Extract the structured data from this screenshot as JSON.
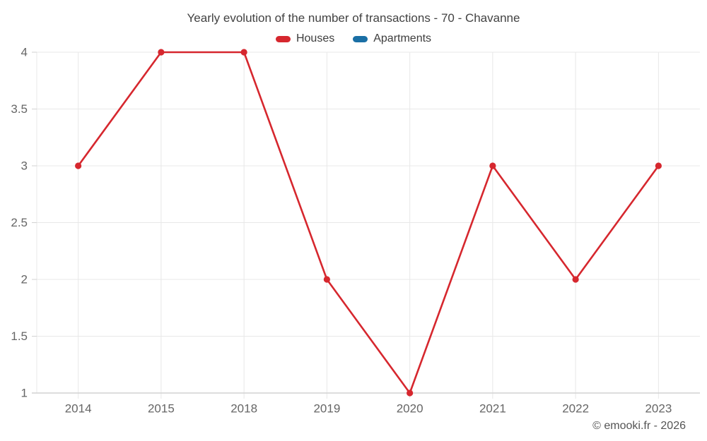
{
  "title": "Yearly evolution of the number of transactions - 70 - Chavanne",
  "legend": [
    {
      "label": "Houses",
      "color": "#d6272e"
    },
    {
      "label": "Apartments",
      "color": "#1a6fa5"
    }
  ],
  "copyright": "© emooki.fr - 2026",
  "chart_data": {
    "type": "line",
    "categories": [
      "2014",
      "2015",
      "2018",
      "2019",
      "2020",
      "2021",
      "2022",
      "2023"
    ],
    "series": [
      {
        "name": "Houses",
        "color": "#d6272e",
        "values": [
          3,
          4,
          4,
          2,
          1,
          3,
          2,
          3
        ]
      },
      {
        "name": "Apartments",
        "color": "#1a6fa5",
        "values": []
      }
    ],
    "title": "Yearly evolution of the number of transactions - 70 - Chavanne",
    "xlabel": "",
    "ylabel": "",
    "ylim": [
      1,
      4
    ],
    "yticks": [
      1,
      1.5,
      2,
      2.5,
      3,
      3.5,
      4
    ],
    "grid": true,
    "legend_position": "top",
    "marker": "circle"
  },
  "colors": {
    "grid": "#e8e8e8",
    "axis": "#d2d2d2",
    "tick_label": "#666666",
    "title_text": "#424242",
    "copyright_text": "#545454"
  }
}
